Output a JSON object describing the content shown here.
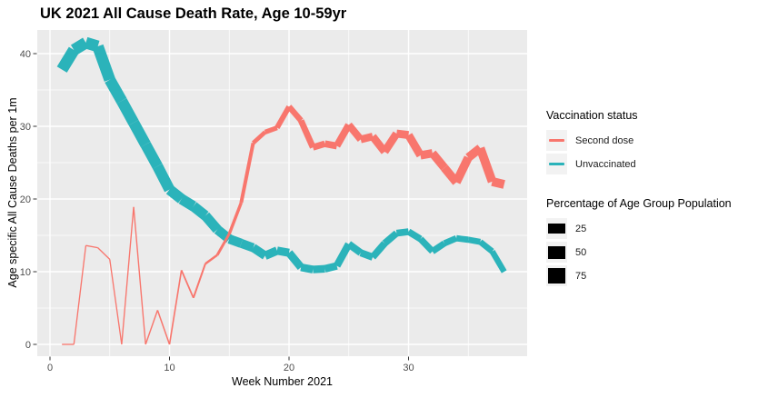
{
  "title": "UK 2021 All Cause Death Rate, Age 10-59yr",
  "axes": {
    "x": {
      "label": "Week Number 2021",
      "ticks": [
        0,
        10,
        20,
        30
      ],
      "minor_ticks": [
        5,
        15,
        25,
        35
      ]
    },
    "y": {
      "label": "Age specific All Cause Deaths per 1m",
      "ticks": [
        0,
        10,
        20,
        30,
        40
      ],
      "minor_ticks": [
        5,
        15,
        25,
        35
      ]
    }
  },
  "legend": {
    "color": {
      "title": "Vaccination status",
      "entries": [
        {
          "label": "Second dose",
          "color": "#F8766D"
        },
        {
          "label": "Unvaccinated",
          "color": "#2BB3BA"
        }
      ]
    },
    "size": {
      "title": "Percentage of Age Group Population",
      "entries": [
        {
          "label": "25",
          "height": 11
        },
        {
          "label": "50",
          "height": 14
        },
        {
          "label": "75",
          "height": 17
        }
      ]
    }
  },
  "colors": {
    "panel_bg": "#EBEBEB",
    "grid": "#FFFFFF",
    "tick_mark": "#333333",
    "tick_text": "#4D4D4D",
    "key_bg": "#F2F2F2",
    "second_dose": "#F8766D",
    "unvaccinated": "#2BB3BA"
  },
  "chart_data": {
    "type": "line",
    "title": "UK 2021 All Cause Death Rate, Age 10-59yr",
    "xlabel": "Week Number 2021",
    "ylabel": "Age specific All Cause Deaths per 1m",
    "xlim": [
      -1.1,
      39.8
    ],
    "ylim": [
      -1.6,
      43.3
    ],
    "grid": "white major and minor gridlines on grey panel",
    "legend_position": "right",
    "size_encoding": "line width = percentage of age group population",
    "weeks": [
      1,
      2,
      3,
      4,
      5,
      6,
      7,
      8,
      9,
      10,
      11,
      12,
      13,
      14,
      15,
      16,
      17,
      18,
      19,
      20,
      21,
      22,
      23,
      24,
      25,
      26,
      27,
      28,
      29,
      30,
      31,
      32,
      33,
      34,
      35,
      36,
      37,
      38
    ],
    "series": [
      {
        "name": "Second dose",
        "color": "#F8766D",
        "values": [
          0,
          0,
          13.6,
          13.3,
          11.7,
          0,
          18.9,
          0,
          4.7,
          0,
          10.2,
          6.4,
          11.1,
          12.3,
          15.2,
          19.5,
          27.7,
          29.2,
          29.8,
          32.7,
          30.8,
          27.1,
          27.6,
          27.3,
          30.2,
          28.2,
          28.6,
          26.5,
          29.0,
          28.8,
          26.0,
          26.3,
          24.3,
          22.3,
          25.7,
          27.0,
          22.4,
          22.0
        ],
        "width_pct": [
          1,
          1,
          1,
          1,
          1,
          1,
          1.5,
          1.5,
          2,
          3,
          4,
          5,
          8,
          12,
          16,
          20,
          25,
          30,
          35,
          40,
          44,
          47,
          50,
          52,
          54,
          56,
          58,
          60,
          61,
          62,
          63,
          64,
          65,
          66,
          67,
          68,
          69,
          70
        ]
      },
      {
        "name": "Unvaccinated",
        "color": "#2BB3BA",
        "values": [
          37.8,
          40.5,
          41.5,
          41.0,
          36.4,
          33.5,
          30.5,
          27.5,
          24.5,
          21.3,
          20.0,
          19.0,
          17.7,
          15.8,
          14.5,
          13.9,
          13.3,
          12.2,
          12.9,
          12.6,
          10.6,
          10.3,
          10.4,
          10.8,
          13.8,
          12.6,
          12.0,
          13.9,
          15.3,
          15.5,
          14.5,
          12.8,
          13.9,
          14.6,
          14.4,
          14.1,
          12.8,
          10.0
        ],
        "width_pct": [
          93,
          93,
          92,
          92,
          91,
          90,
          89,
          88,
          87,
          86,
          84,
          82,
          80,
          77,
          74,
          71,
          68,
          66,
          64,
          62,
          60,
          58,
          57,
          56,
          55,
          54,
          53,
          52,
          51,
          50,
          49,
          48,
          47,
          46,
          45,
          44,
          43,
          42
        ]
      }
    ]
  }
}
